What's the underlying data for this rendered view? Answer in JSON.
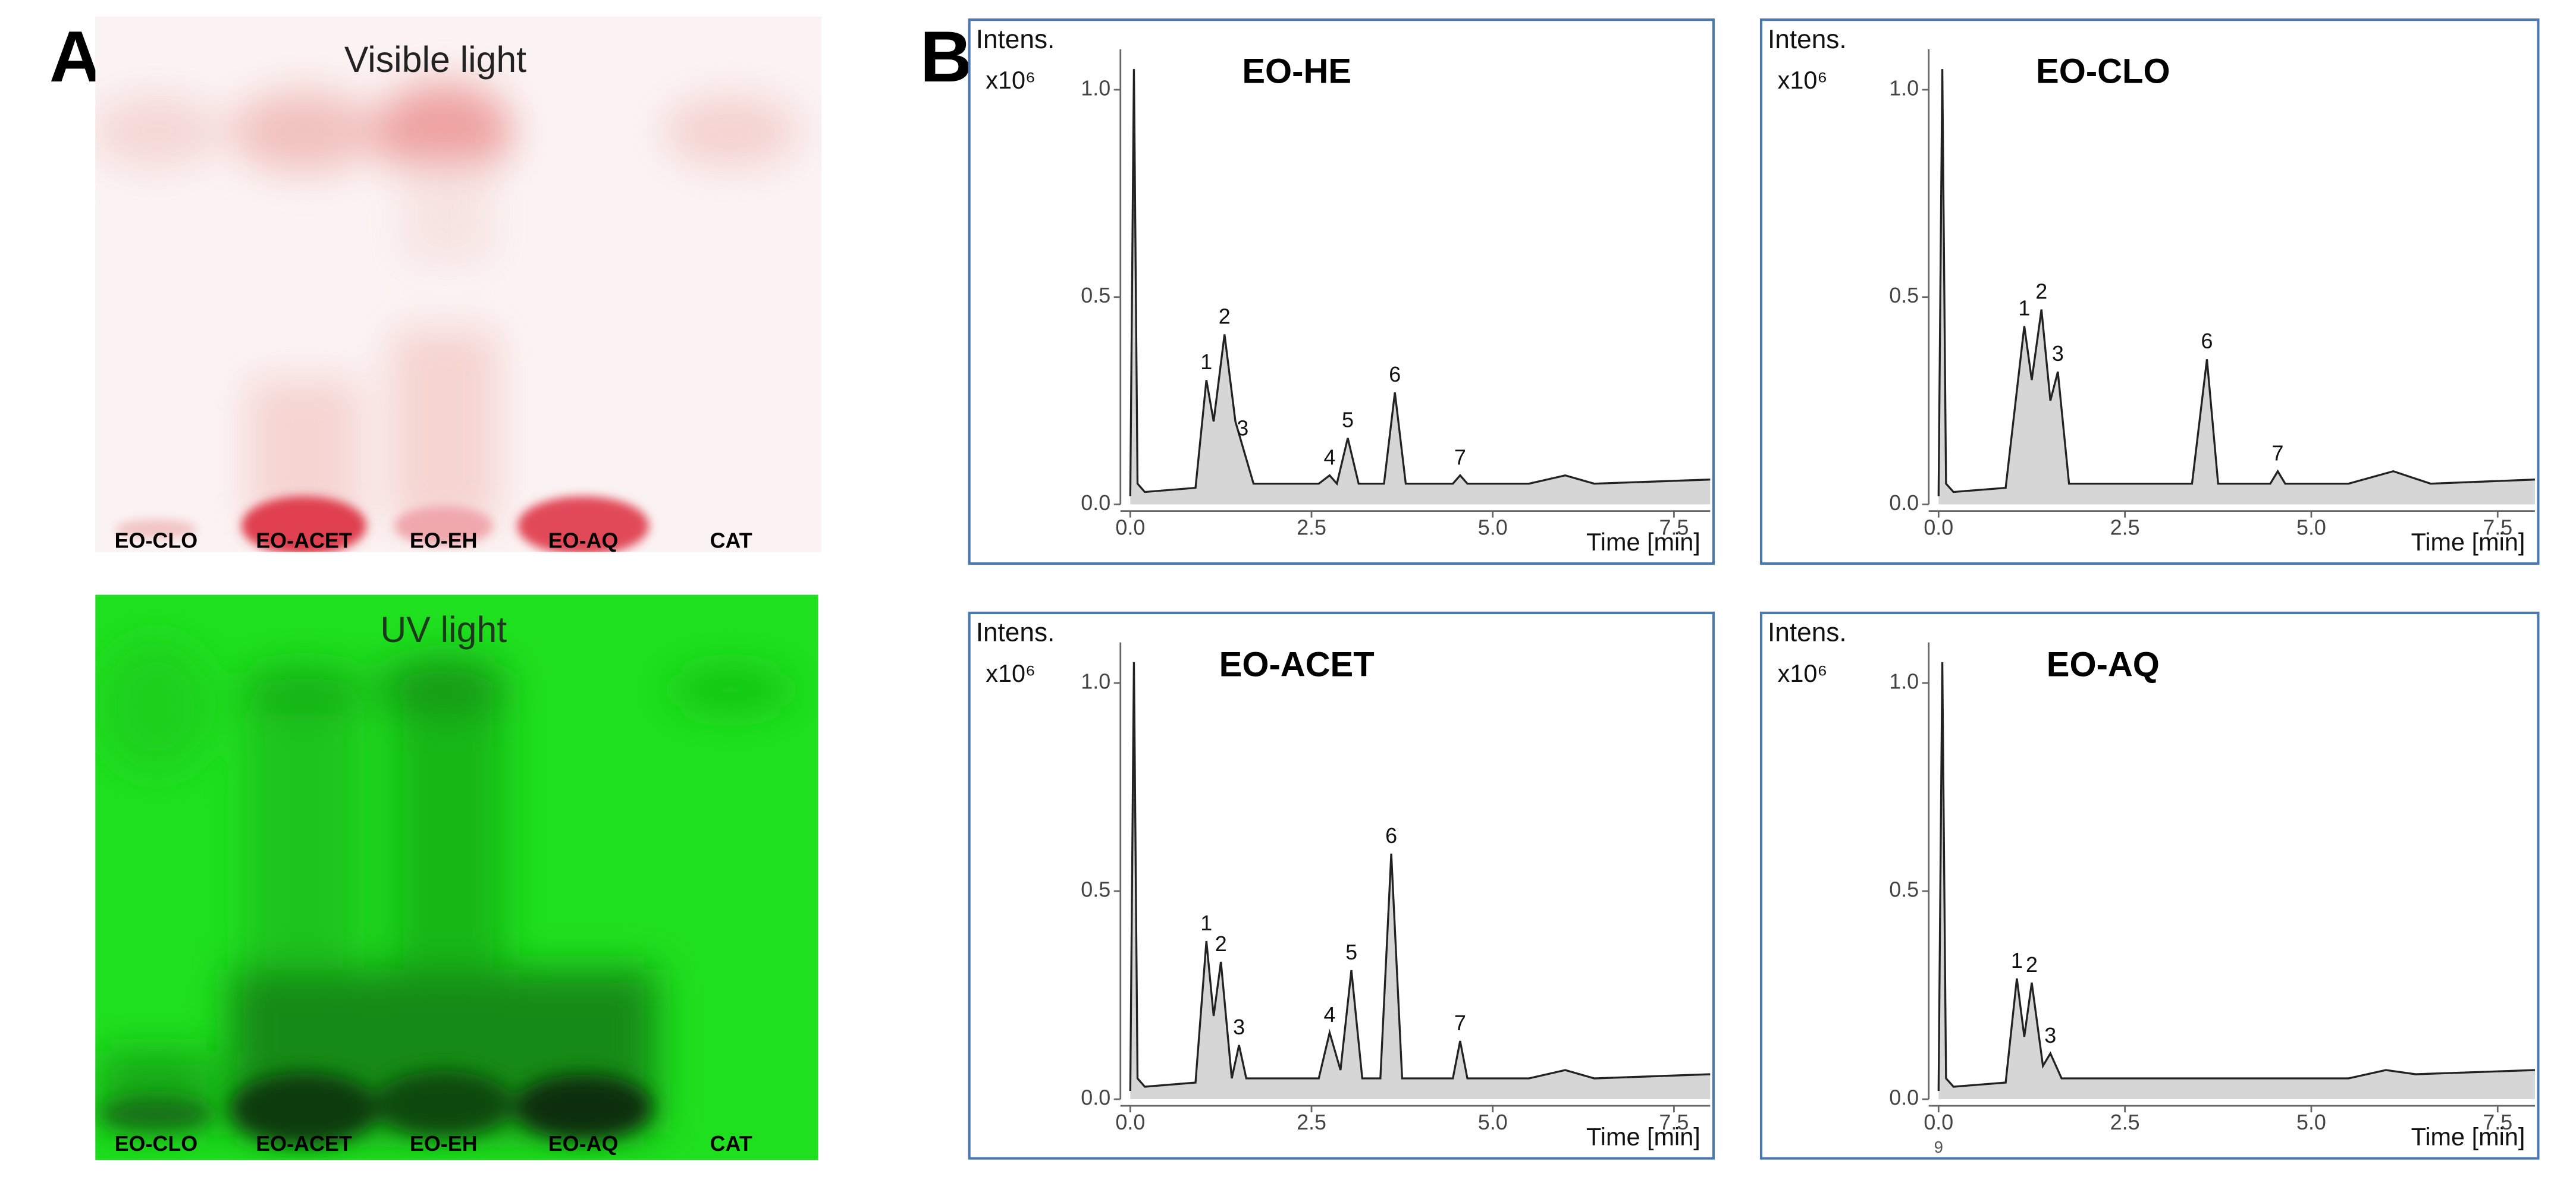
{
  "panel_a": {
    "letter": "A",
    "visible": {
      "title": "Visible light",
      "lanes": [
        "EO-CLO",
        "EO-ACET",
        "EO-EH",
        "EO-AQ",
        "CAT"
      ]
    },
    "uv": {
      "title": "UV light",
      "lanes": [
        "EO-CLO",
        "EO-ACET",
        "EO-EH",
        "EO-AQ",
        "CAT"
      ]
    }
  },
  "panel_b": {
    "letter": "B"
  },
  "chart_data": [
    {
      "type": "line",
      "title": "EO-HE",
      "y_label": "Intens.",
      "y_unit": "x10⁶",
      "x_label": "Time [min]",
      "color": "#222222",
      "fill": "#d6d6d6",
      "x": [
        0,
        0.05,
        0.1,
        0.2,
        0.9,
        1.05,
        1.15,
        1.3,
        1.45,
        1.55,
        1.7,
        2.6,
        2.75,
        2.85,
        3.0,
        3.15,
        3.5,
        3.65,
        3.8,
        4.45,
        4.55,
        4.65,
        5.5,
        6.0,
        6.4,
        8.0
      ],
      "values": [
        0.02,
        1.05,
        0.05,
        0.03,
        0.04,
        0.3,
        0.2,
        0.41,
        0.2,
        0.14,
        0.05,
        0.05,
        0.07,
        0.05,
        0.16,
        0.05,
        0.05,
        0.27,
        0.05,
        0.05,
        0.07,
        0.05,
        0.05,
        0.07,
        0.05,
        0.06
      ],
      "annotations": [
        {
          "label": "1",
          "x": 1.05,
          "y": 0.3
        },
        {
          "label": "2",
          "x": 1.3,
          "y": 0.41
        },
        {
          "label": "3",
          "x": 1.55,
          "y": 0.14
        },
        {
          "label": "4",
          "x": 2.75,
          "y": 0.07
        },
        {
          "label": "5",
          "x": 3.0,
          "y": 0.16
        },
        {
          "label": "6",
          "x": 3.65,
          "y": 0.27
        },
        {
          "label": "7",
          "x": 4.55,
          "y": 0.07
        }
      ],
      "xlim": [
        0,
        8
      ],
      "ylim": [
        0,
        1.05
      ],
      "xticks": [
        {
          "value": 0,
          "label": "0.0"
        },
        {
          "value": 2.5,
          "label": "2.5"
        },
        {
          "value": 5,
          "label": "5.0"
        },
        {
          "value": 7.5,
          "label": "7.5"
        }
      ],
      "yticks": [
        {
          "value": 0,
          "label": "0.0"
        },
        {
          "value": 0.5,
          "label": "0.5"
        },
        {
          "value": 1,
          "label": "1.0"
        }
      ]
    },
    {
      "type": "line",
      "title": "EO-CLO",
      "y_label": "Intens.",
      "y_unit": "x10⁶",
      "x_label": "Time [min]",
      "color": "#222222",
      "fill": "#d6d6d6",
      "x": [
        0,
        0.05,
        0.1,
        0.2,
        0.9,
        1.15,
        1.25,
        1.38,
        1.5,
        1.6,
        1.75,
        3.4,
        3.6,
        3.75,
        4.45,
        4.55,
        4.65,
        5.5,
        6.1,
        6.6,
        8.0
      ],
      "values": [
        0.02,
        1.05,
        0.05,
        0.03,
        0.04,
        0.43,
        0.3,
        0.47,
        0.25,
        0.32,
        0.05,
        0.05,
        0.35,
        0.05,
        0.05,
        0.08,
        0.05,
        0.05,
        0.08,
        0.05,
        0.06
      ],
      "annotations": [
        {
          "label": "1",
          "x": 1.15,
          "y": 0.43
        },
        {
          "label": "2",
          "x": 1.38,
          "y": 0.47
        },
        {
          "label": "3",
          "x": 1.6,
          "y": 0.32
        },
        {
          "label": "6",
          "x": 3.6,
          "y": 0.35
        },
        {
          "label": "7",
          "x": 4.55,
          "y": 0.08
        }
      ],
      "xlim": [
        0,
        8
      ],
      "ylim": [
        0,
        1.05
      ],
      "xticks": [
        {
          "value": 0,
          "label": "0.0"
        },
        {
          "value": 2.5,
          "label": "2.5"
        },
        {
          "value": 5,
          "label": "5.0"
        },
        {
          "value": 7.5,
          "label": "7.5"
        }
      ],
      "yticks": [
        {
          "value": 0,
          "label": "0.0"
        },
        {
          "value": 0.5,
          "label": "0.5"
        },
        {
          "value": 1,
          "label": "1.0"
        }
      ]
    },
    {
      "type": "line",
      "title": "EO-ACET",
      "y_label": "Intens.",
      "y_unit": "x10⁶",
      "x_label": "Time [min]",
      "color": "#222222",
      "fill": "#d6d6d6",
      "x": [
        0,
        0.05,
        0.1,
        0.2,
        0.9,
        1.05,
        1.15,
        1.25,
        1.4,
        1.5,
        1.6,
        2.6,
        2.75,
        2.9,
        3.05,
        3.2,
        3.45,
        3.6,
        3.75,
        4.45,
        4.55,
        4.65,
        5.5,
        6.0,
        6.4,
        8.0
      ],
      "values": [
        0.02,
        1.05,
        0.05,
        0.03,
        0.04,
        0.38,
        0.2,
        0.33,
        0.05,
        0.13,
        0.05,
        0.05,
        0.16,
        0.07,
        0.31,
        0.05,
        0.05,
        0.59,
        0.05,
        0.05,
        0.14,
        0.05,
        0.05,
        0.07,
        0.05,
        0.06
      ],
      "annotations": [
        {
          "label": "1",
          "x": 1.05,
          "y": 0.38
        },
        {
          "label": "2",
          "x": 1.25,
          "y": 0.33
        },
        {
          "label": "3",
          "x": 1.5,
          "y": 0.13
        },
        {
          "label": "4",
          "x": 2.75,
          "y": 0.16
        },
        {
          "label": "5",
          "x": 3.05,
          "y": 0.31
        },
        {
          "label": "6",
          "x": 3.6,
          "y": 0.59
        },
        {
          "label": "7",
          "x": 4.55,
          "y": 0.14
        }
      ],
      "xlim": [
        0,
        8
      ],
      "ylim": [
        0,
        1.05
      ],
      "xticks": [
        {
          "value": 0,
          "label": "0.0"
        },
        {
          "value": 2.5,
          "label": "2.5"
        },
        {
          "value": 5,
          "label": "5.0"
        },
        {
          "value": 7.5,
          "label": "7.5"
        }
      ],
      "yticks": [
        {
          "value": 0,
          "label": "0.0"
        },
        {
          "value": 0.5,
          "label": "0.5"
        },
        {
          "value": 1,
          "label": "1.0"
        }
      ]
    },
    {
      "type": "line",
      "title": "EO-AQ",
      "y_label": "Intens.",
      "y_unit": "x10⁶",
      "x_label": "Time [min]",
      "color": "#222222",
      "fill": "#d6d6d6",
      "footnote": "9",
      "x": [
        0,
        0.05,
        0.1,
        0.2,
        0.9,
        1.05,
        1.15,
        1.25,
        1.4,
        1.5,
        1.65,
        3.0,
        5.5,
        6.0,
        6.4,
        8.0
      ],
      "values": [
        0.02,
        1.05,
        0.05,
        0.03,
        0.04,
        0.29,
        0.15,
        0.28,
        0.08,
        0.11,
        0.05,
        0.05,
        0.05,
        0.07,
        0.06,
        0.07
      ],
      "annotations": [
        {
          "label": "1",
          "x": 1.05,
          "y": 0.29
        },
        {
          "label": "2",
          "x": 1.25,
          "y": 0.28
        },
        {
          "label": "3",
          "x": 1.5,
          "y": 0.11
        }
      ],
      "xlim": [
        0,
        8
      ],
      "ylim": [
        0,
        1.05
      ],
      "xticks": [
        {
          "value": 0,
          "label": "0.0"
        },
        {
          "value": 2.5,
          "label": "2.5"
        },
        {
          "value": 5,
          "label": "5.0"
        },
        {
          "value": 7.5,
          "label": "7.5"
        }
      ],
      "yticks": [
        {
          "value": 0,
          "label": "0.0"
        },
        {
          "value": 0.5,
          "label": "0.5"
        },
        {
          "value": 1,
          "label": "1.0"
        }
      ]
    }
  ]
}
